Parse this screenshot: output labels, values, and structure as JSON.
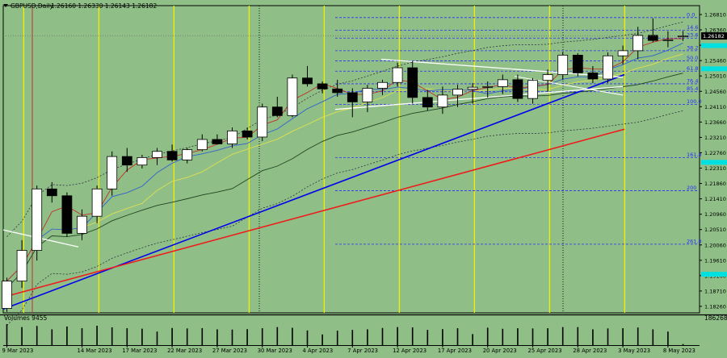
{
  "header": {
    "symbol_label": "GBPUSD,Daily",
    "ohlc": "1.26160 1.26330 1.26143 1.26182"
  },
  "volumes_label": "Volumes 9455",
  "volume_max_label": "186268",
  "colors": {
    "background": "#8fbf86",
    "bull": "#ffffff",
    "bear": "#000000",
    "fib": "#2b2bff",
    "blue_trend": "#0000ee",
    "red_trend": "#ee1c1c",
    "white_line": "#ffffff",
    "yellow_vline": "#f0f000",
    "red_vline": "#c23030",
    "cyan_marker": "#00e0e0",
    "ma_red": "#c0302a",
    "ma_blue": "#3060d0",
    "ma_yellow": "#e0e050",
    "ma_dark": "#224422"
  },
  "chart_data": {
    "type": "candlestick",
    "title": "GBPUSD,Daily",
    "y_ticks": [
      "1.26810",
      "1.26360",
      "1.25910",
      "1.25460",
      "1.25010",
      "1.24560",
      "1.24110",
      "1.23660",
      "1.23210",
      "1.22760",
      "1.22310",
      "1.21860",
      "1.21410",
      "1.20960",
      "1.20510",
      "1.20060",
      "1.19610",
      "1.19160",
      "1.18710",
      "1.18260"
    ],
    "ylim": [
      1.1807,
      1.2707
    ],
    "current_price_label": "1.26182",
    "current_price": 1.26182,
    "x_labels": [
      {
        "i": 0,
        "label": "9 Mar 2023"
      },
      {
        "i": 5,
        "label": "14 Mar 2023"
      },
      {
        "i": 8,
        "label": "17 Mar 2023"
      },
      {
        "i": 11,
        "label": "22 Mar 2023"
      },
      {
        "i": 14,
        "label": "27 Mar 2023"
      },
      {
        "i": 17,
        "label": "30 Mar 2023"
      },
      {
        "i": 20,
        "label": "4 Apr 2023"
      },
      {
        "i": 23,
        "label": "7 Apr 2023"
      },
      {
        "i": 26,
        "label": "12 Apr 2023"
      },
      {
        "i": 29,
        "label": "17 Apr 2023"
      },
      {
        "i": 32,
        "label": "20 Apr 2023"
      },
      {
        "i": 35,
        "label": "25 Apr 2023"
      },
      {
        "i": 38,
        "label": "28 Apr 2023"
      },
      {
        "i": 41,
        "label": "3 May 2023"
      },
      {
        "i": 44,
        "label": "8 May 2023"
      }
    ],
    "candles": [
      {
        "o": 1.182,
        "h": 1.191,
        "l": 1.181,
        "c": 1.19
      },
      {
        "o": 1.19,
        "h": 1.202,
        "l": 1.188,
        "c": 1.199
      },
      {
        "o": 1.199,
        "h": 1.218,
        "l": 1.196,
        "c": 1.217
      },
      {
        "o": 1.217,
        "h": 1.219,
        "l": 1.213,
        "c": 1.215
      },
      {
        "o": 1.215,
        "h": 1.216,
        "l": 1.203,
        "c": 1.204
      },
      {
        "o": 1.204,
        "h": 1.211,
        "l": 1.202,
        "c": 1.209
      },
      {
        "o": 1.209,
        "h": 1.218,
        "l": 1.207,
        "c": 1.217
      },
      {
        "o": 1.217,
        "h": 1.228,
        "l": 1.215,
        "c": 1.2265
      },
      {
        "o": 1.2265,
        "h": 1.229,
        "l": 1.222,
        "c": 1.224
      },
      {
        "o": 1.224,
        "h": 1.227,
        "l": 1.223,
        "c": 1.2262
      },
      {
        "o": 1.2262,
        "h": 1.229,
        "l": 1.224,
        "c": 1.228
      },
      {
        "o": 1.228,
        "h": 1.23,
        "l": 1.225,
        "c": 1.2255
      },
      {
        "o": 1.2255,
        "h": 1.229,
        "l": 1.2245,
        "c": 1.2285
      },
      {
        "o": 1.2285,
        "h": 1.233,
        "l": 1.228,
        "c": 1.2315
      },
      {
        "o": 1.2315,
        "h": 1.233,
        "l": 1.23,
        "c": 1.2302
      },
      {
        "o": 1.2302,
        "h": 1.235,
        "l": 1.229,
        "c": 1.234
      },
      {
        "o": 1.234,
        "h": 1.235,
        "l": 1.2315,
        "c": 1.2322
      },
      {
        "o": 1.2322,
        "h": 1.242,
        "l": 1.231,
        "c": 1.241
      },
      {
        "o": 1.241,
        "h": 1.244,
        "l": 1.238,
        "c": 1.2385
      },
      {
        "o": 1.2385,
        "h": 1.2505,
        "l": 1.238,
        "c": 1.2495
      },
      {
        "o": 1.2495,
        "h": 1.253,
        "l": 1.247,
        "c": 1.2478
      },
      {
        "o": 1.2478,
        "h": 1.2485,
        "l": 1.245,
        "c": 1.2463
      },
      {
        "o": 1.2463,
        "h": 1.249,
        "l": 1.244,
        "c": 1.2452
      },
      {
        "o": 1.2452,
        "h": 1.2465,
        "l": 1.238,
        "c": 1.2425
      },
      {
        "o": 1.2425,
        "h": 1.2475,
        "l": 1.2395,
        "c": 1.2465
      },
      {
        "o": 1.2465,
        "h": 1.249,
        "l": 1.2445,
        "c": 1.2482
      },
      {
        "o": 1.2482,
        "h": 1.254,
        "l": 1.247,
        "c": 1.2525
      },
      {
        "o": 1.2525,
        "h": 1.2545,
        "l": 1.242,
        "c": 1.2438
      },
      {
        "o": 1.2438,
        "h": 1.246,
        "l": 1.24,
        "c": 1.241
      },
      {
        "o": 1.241,
        "h": 1.247,
        "l": 1.239,
        "c": 1.2445
      },
      {
        "o": 1.2445,
        "h": 1.2475,
        "l": 1.241,
        "c": 1.2462
      },
      {
        "o": 1.2462,
        "h": 1.248,
        "l": 1.242,
        "c": 1.2468
      },
      {
        "o": 1.2468,
        "h": 1.2485,
        "l": 1.2438,
        "c": 1.247
      },
      {
        "o": 1.247,
        "h": 1.2505,
        "l": 1.2448,
        "c": 1.249
      },
      {
        "o": 1.249,
        "h": 1.2505,
        "l": 1.2425,
        "c": 1.2435
      },
      {
        "o": 1.2435,
        "h": 1.2495,
        "l": 1.242,
        "c": 1.2488
      },
      {
        "o": 1.2488,
        "h": 1.252,
        "l": 1.2455,
        "c": 1.2505
      },
      {
        "o": 1.2505,
        "h": 1.257,
        "l": 1.249,
        "c": 1.2562
      },
      {
        "o": 1.2562,
        "h": 1.2568,
        "l": 1.25,
        "c": 1.251
      },
      {
        "o": 1.251,
        "h": 1.253,
        "l": 1.248,
        "c": 1.2492
      },
      {
        "o": 1.2492,
        "h": 1.257,
        "l": 1.248,
        "c": 1.256
      },
      {
        "o": 1.256,
        "h": 1.259,
        "l": 1.2535,
        "c": 1.2575
      },
      {
        "o": 1.2575,
        "h": 1.2645,
        "l": 1.255,
        "c": 1.262
      },
      {
        "o": 1.262,
        "h": 1.267,
        "l": 1.26,
        "c": 1.2605
      },
      {
        "o": 1.2605,
        "h": 1.2632,
        "l": 1.2585,
        "c": 1.2607
      },
      {
        "o": 1.2616,
        "h": 1.2633,
        "l": 1.2604,
        "c": 1.2618
      }
    ],
    "volumes": [
      186268,
      160000,
      170000,
      140000,
      165000,
      150000,
      172000,
      158000,
      150000,
      146000,
      120000,
      152000,
      148000,
      151000,
      140000,
      138000,
      142000,
      150000,
      160000,
      154000,
      130000,
      95000,
      128000,
      135000,
      140000,
      152000,
      160000,
      157000,
      135000,
      142000,
      150000,
      98000,
      155000,
      145000,
      150000,
      148000,
      150000,
      160000,
      160000,
      140000,
      148000,
      150000,
      156000,
      140000,
      120000,
      9455
    ],
    "fib_levels": [
      {
        "label": "0.0",
        "price": 1.2672
      },
      {
        "label": "14.6",
        "price": 1.2635
      },
      {
        "label": "23.6",
        "price": 1.2612
      },
      {
        "label": "38.2",
        "price": 1.2575
      },
      {
        "label": "50.0",
        "price": 1.2545
      },
      {
        "label": "61.8",
        "price": 1.2515
      },
      {
        "label": "76.4",
        "price": 1.2478
      },
      {
        "label": "85.4",
        "price": 1.2455
      },
      {
        "label": "100.0",
        "price": 1.2418
      },
      {
        "label": "161.8",
        "price": 1.2262
      },
      {
        "label": "200",
        "price": 1.2165
      },
      {
        "label": "261.8",
        "price": 1.2008
      }
    ]
  }
}
